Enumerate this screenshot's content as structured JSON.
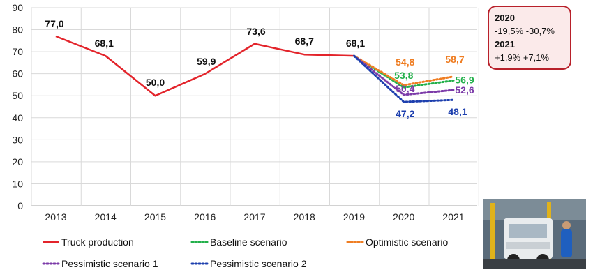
{
  "chart_data": {
    "type": "line",
    "categories": [
      "2013",
      "2014",
      "2015",
      "2016",
      "2017",
      "2018",
      "2019",
      "2020",
      "2021"
    ],
    "ylim": [
      0,
      90
    ],
    "yticks": [
      "0",
      "10",
      "20",
      "30",
      "40",
      "50",
      "60",
      "70",
      "80",
      "90"
    ],
    "grid": true,
    "legend_position": "bottom",
    "series": [
      {
        "name": "Truck production",
        "style": "solid",
        "color": "#e3242b",
        "values": [
          77.0,
          68.1,
          50.0,
          59.9,
          73.6,
          68.7,
          68.1,
          null,
          null
        ],
        "labels": [
          "77,0",
          "68,1",
          "50,0",
          "59,9",
          "73,6",
          "68,7",
          "68,1",
          "",
          ""
        ]
      },
      {
        "name": "Baseline scenario",
        "style": "dotted",
        "color": "#22b04a",
        "values": [
          null,
          null,
          null,
          null,
          null,
          null,
          68.1,
          53.8,
          56.9
        ],
        "labels": [
          "",
          "",
          "",
          "",
          "",
          "",
          "",
          "53,8",
          "56,9"
        ]
      },
      {
        "name": "Optimistic scenario",
        "style": "dotted",
        "color": "#ef7d22",
        "values": [
          null,
          null,
          null,
          null,
          null,
          null,
          68.1,
          54.8,
          58.7
        ],
        "labels": [
          "",
          "",
          "",
          "",
          "",
          "",
          "",
          "54,8",
          "58,7"
        ]
      },
      {
        "name": "Pessimistic scenario 1",
        "style": "dotted",
        "color": "#7b3aa8",
        "values": [
          null,
          null,
          null,
          null,
          null,
          null,
          68.1,
          50.4,
          52.6
        ],
        "labels": [
          "",
          "",
          "",
          "",
          "",
          "",
          "",
          "50,4",
          "52,6"
        ]
      },
      {
        "name": "Pessimistic scenario 2",
        "style": "dotted",
        "color": "#1d3fae",
        "values": [
          null,
          null,
          null,
          null,
          null,
          null,
          68.1,
          47.2,
          48.1
        ],
        "labels": [
          "",
          "",
          "",
          "",
          "",
          "",
          "",
          "47,2",
          "48,1"
        ]
      }
    ]
  },
  "callout": {
    "year1": "2020",
    "range1": "-19,5% -30,7%",
    "year2": "2021",
    "range2": "+1,9%  +7,1%"
  },
  "photo": {
    "description_icon": "truck-factory-photo"
  },
  "colors": {
    "callout_border": "#b8202a",
    "callout_bg": "#fbeaea",
    "grid": "#d9d9d9",
    "axis": "#a6a6a6"
  }
}
